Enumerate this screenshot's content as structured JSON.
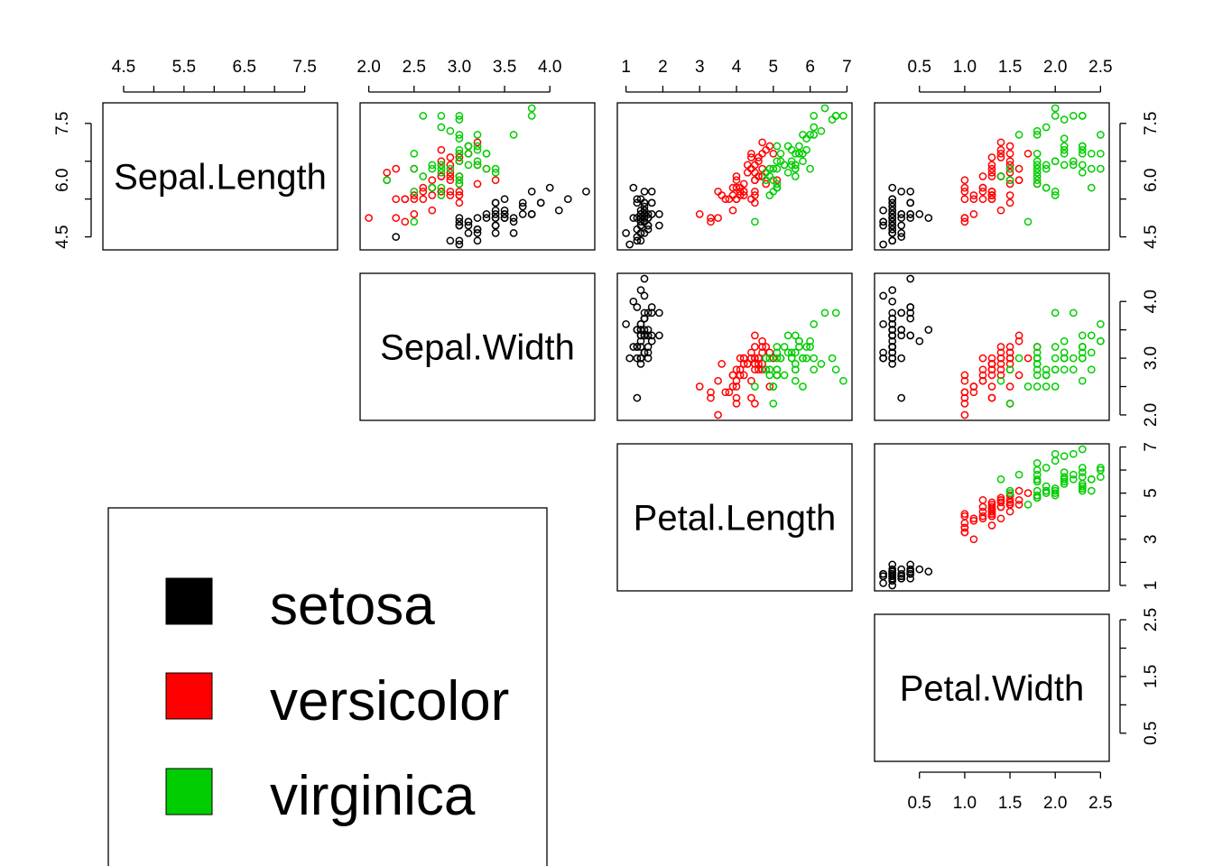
{
  "chart_data": {
    "type": "scatter",
    "variables": [
      "Sepal.Length",
      "Sepal.Width",
      "Petal.Length",
      "Petal.Width"
    ],
    "species": [
      {
        "name": "setosa",
        "color": "#000000"
      },
      {
        "name": "versicolor",
        "color": "#ff0000"
      },
      {
        "name": "virginica",
        "color": "#00cd00"
      }
    ],
    "axes": {
      "Sepal.Length": {
        "lim": [
          4.3,
          7.9
        ],
        "ticks": [
          "4.5",
          "5.5",
          "6.5",
          "7.5"
        ],
        "side_ticks": [
          "4.5",
          "6.0",
          "7.5"
        ]
      },
      "Sepal.Width": {
        "lim": [
          2.0,
          4.4
        ],
        "ticks": [
          "2.0",
          "2.5",
          "3.0",
          "3.5",
          "4.0"
        ],
        "side_ticks": [
          "2.0",
          "3.0",
          "4.0"
        ]
      },
      "Petal.Length": {
        "lim": [
          1.0,
          6.9
        ],
        "ticks": [
          "1",
          "2",
          "3",
          "4",
          "5",
          "6",
          "7"
        ],
        "side_ticks": [
          "1",
          "3",
          "5",
          "7"
        ]
      },
      "Petal.Width": {
        "lim": [
          0.1,
          2.5
        ],
        "ticks": [
          "0.5",
          "1.0",
          "1.5",
          "2.0",
          "2.5"
        ],
        "side_ticks": [
          "0.5",
          "1.5",
          "2.5"
        ]
      }
    },
    "legend": {
      "position": "bottom-left",
      "entries": [
        "setosa",
        "versicolor",
        "virginica"
      ]
    },
    "grid": false,
    "data": [
      [
        5.1,
        3.5,
        1.4,
        0.2,
        0
      ],
      [
        4.9,
        3.0,
        1.4,
        0.2,
        0
      ],
      [
        4.7,
        3.2,
        1.3,
        0.2,
        0
      ],
      [
        4.6,
        3.1,
        1.5,
        0.2,
        0
      ],
      [
        5.0,
        3.6,
        1.4,
        0.2,
        0
      ],
      [
        5.4,
        3.9,
        1.7,
        0.4,
        0
      ],
      [
        4.6,
        3.4,
        1.4,
        0.3,
        0
      ],
      [
        5.0,
        3.4,
        1.5,
        0.2,
        0
      ],
      [
        4.4,
        2.9,
        1.4,
        0.2,
        0
      ],
      [
        4.9,
        3.1,
        1.5,
        0.1,
        0
      ],
      [
        5.4,
        3.7,
        1.5,
        0.2,
        0
      ],
      [
        4.8,
        3.4,
        1.6,
        0.2,
        0
      ],
      [
        4.8,
        3.0,
        1.4,
        0.1,
        0
      ],
      [
        4.3,
        3.0,
        1.1,
        0.1,
        0
      ],
      [
        5.8,
        4.0,
        1.2,
        0.2,
        0
      ],
      [
        5.7,
        4.4,
        1.5,
        0.4,
        0
      ],
      [
        5.4,
        3.9,
        1.3,
        0.4,
        0
      ],
      [
        5.1,
        3.5,
        1.4,
        0.3,
        0
      ],
      [
        5.7,
        3.8,
        1.7,
        0.3,
        0
      ],
      [
        5.1,
        3.8,
        1.5,
        0.3,
        0
      ],
      [
        5.4,
        3.4,
        1.7,
        0.2,
        0
      ],
      [
        5.1,
        3.7,
        1.5,
        0.4,
        0
      ],
      [
        4.6,
        3.6,
        1.0,
        0.2,
        0
      ],
      [
        5.1,
        3.3,
        1.7,
        0.5,
        0
      ],
      [
        4.8,
        3.4,
        1.9,
        0.2,
        0
      ],
      [
        5.0,
        3.0,
        1.6,
        0.2,
        0
      ],
      [
        5.0,
        3.4,
        1.6,
        0.4,
        0
      ],
      [
        5.2,
        3.5,
        1.5,
        0.2,
        0
      ],
      [
        5.2,
        3.4,
        1.4,
        0.2,
        0
      ],
      [
        4.7,
        3.2,
        1.6,
        0.2,
        0
      ],
      [
        4.8,
        3.1,
        1.6,
        0.2,
        0
      ],
      [
        5.4,
        3.4,
        1.5,
        0.4,
        0
      ],
      [
        5.2,
        4.1,
        1.5,
        0.1,
        0
      ],
      [
        5.5,
        4.2,
        1.4,
        0.2,
        0
      ],
      [
        4.9,
        3.1,
        1.5,
        0.2,
        0
      ],
      [
        5.0,
        3.2,
        1.2,
        0.2,
        0
      ],
      [
        5.5,
        3.5,
        1.3,
        0.2,
        0
      ],
      [
        4.9,
        3.6,
        1.4,
        0.1,
        0
      ],
      [
        4.4,
        3.0,
        1.3,
        0.2,
        0
      ],
      [
        5.1,
        3.4,
        1.5,
        0.2,
        0
      ],
      [
        5.0,
        3.5,
        1.3,
        0.3,
        0
      ],
      [
        4.5,
        2.3,
        1.3,
        0.3,
        0
      ],
      [
        4.4,
        3.2,
        1.3,
        0.2,
        0
      ],
      [
        5.0,
        3.5,
        1.6,
        0.6,
        0
      ],
      [
        5.1,
        3.8,
        1.9,
        0.4,
        0
      ],
      [
        4.8,
        3.0,
        1.4,
        0.3,
        0
      ],
      [
        5.1,
        3.8,
        1.6,
        0.2,
        0
      ],
      [
        4.6,
        3.2,
        1.4,
        0.2,
        0
      ],
      [
        5.3,
        3.7,
        1.5,
        0.2,
        0
      ],
      [
        5.0,
        3.3,
        1.4,
        0.2,
        0
      ],
      [
        7.0,
        3.2,
        4.7,
        1.4,
        1
      ],
      [
        6.4,
        3.2,
        4.5,
        1.5,
        1
      ],
      [
        6.9,
        3.1,
        4.9,
        1.5,
        1
      ],
      [
        5.5,
        2.3,
        4.0,
        1.3,
        1
      ],
      [
        6.5,
        2.8,
        4.6,
        1.5,
        1
      ],
      [
        5.7,
        2.8,
        4.5,
        1.3,
        1
      ],
      [
        6.3,
        3.3,
        4.7,
        1.6,
        1
      ],
      [
        4.9,
        2.4,
        3.3,
        1.0,
        1
      ],
      [
        6.6,
        2.9,
        4.6,
        1.3,
        1
      ],
      [
        5.2,
        2.7,
        3.9,
        1.4,
        1
      ],
      [
        5.0,
        2.0,
        3.5,
        1.0,
        1
      ],
      [
        5.9,
        3.0,
        4.2,
        1.5,
        1
      ],
      [
        6.0,
        2.2,
        4.0,
        1.0,
        1
      ],
      [
        6.1,
        2.9,
        4.7,
        1.4,
        1
      ],
      [
        5.6,
        2.9,
        3.6,
        1.3,
        1
      ],
      [
        6.7,
        3.1,
        4.4,
        1.4,
        1
      ],
      [
        5.6,
        3.0,
        4.5,
        1.5,
        1
      ],
      [
        5.8,
        2.7,
        4.1,
        1.0,
        1
      ],
      [
        6.2,
        2.2,
        4.5,
        1.5,
        1
      ],
      [
        5.6,
        2.5,
        3.9,
        1.1,
        1
      ],
      [
        5.9,
        3.2,
        4.8,
        1.8,
        1
      ],
      [
        6.1,
        2.8,
        4.0,
        1.3,
        1
      ],
      [
        6.3,
        2.5,
        4.9,
        1.5,
        1
      ],
      [
        6.1,
        2.8,
        4.7,
        1.2,
        1
      ],
      [
        6.4,
        2.9,
        4.3,
        1.3,
        1
      ],
      [
        6.6,
        3.0,
        4.4,
        1.4,
        1
      ],
      [
        6.8,
        2.8,
        4.8,
        1.4,
        1
      ],
      [
        6.7,
        3.0,
        5.0,
        1.7,
        1
      ],
      [
        6.0,
        2.9,
        4.5,
        1.5,
        1
      ],
      [
        5.7,
        2.6,
        3.5,
        1.0,
        1
      ],
      [
        5.5,
        2.4,
        3.8,
        1.1,
        1
      ],
      [
        5.5,
        2.4,
        3.7,
        1.0,
        1
      ],
      [
        5.8,
        2.7,
        3.9,
        1.2,
        1
      ],
      [
        6.0,
        2.7,
        5.1,
        1.6,
        1
      ],
      [
        5.4,
        3.0,
        4.5,
        1.5,
        1
      ],
      [
        6.0,
        3.4,
        4.5,
        1.6,
        1
      ],
      [
        6.7,
        3.1,
        4.7,
        1.5,
        1
      ],
      [
        6.3,
        2.3,
        4.4,
        1.3,
        1
      ],
      [
        5.6,
        3.0,
        4.1,
        1.3,
        1
      ],
      [
        5.5,
        2.5,
        4.0,
        1.3,
        1
      ],
      [
        5.5,
        2.6,
        4.4,
        1.2,
        1
      ],
      [
        6.1,
        3.0,
        4.6,
        1.4,
        1
      ],
      [
        5.8,
        2.6,
        4.0,
        1.2,
        1
      ],
      [
        5.0,
        2.3,
        3.3,
        1.0,
        1
      ],
      [
        5.6,
        2.7,
        4.2,
        1.3,
        1
      ],
      [
        5.7,
        3.0,
        4.2,
        1.2,
        1
      ],
      [
        5.7,
        2.9,
        4.2,
        1.3,
        1
      ],
      [
        6.2,
        2.9,
        4.3,
        1.3,
        1
      ],
      [
        5.1,
        2.5,
        3.0,
        1.1,
        1
      ],
      [
        5.7,
        2.8,
        4.1,
        1.3,
        1
      ],
      [
        6.3,
        3.3,
        6.0,
        2.5,
        2
      ],
      [
        5.8,
        2.7,
        5.1,
        1.9,
        2
      ],
      [
        7.1,
        3.0,
        5.9,
        2.1,
        2
      ],
      [
        6.3,
        2.9,
        5.6,
        1.8,
        2
      ],
      [
        6.5,
        3.0,
        5.8,
        2.2,
        2
      ],
      [
        7.6,
        3.0,
        6.6,
        2.1,
        2
      ],
      [
        4.9,
        2.5,
        4.5,
        1.7,
        2
      ],
      [
        7.3,
        2.9,
        6.3,
        1.8,
        2
      ],
      [
        6.7,
        2.5,
        5.8,
        1.8,
        2
      ],
      [
        7.2,
        3.6,
        6.1,
        2.5,
        2
      ],
      [
        6.5,
        3.2,
        5.1,
        2.0,
        2
      ],
      [
        6.4,
        2.7,
        5.3,
        1.9,
        2
      ],
      [
        6.8,
        3.0,
        5.5,
        2.1,
        2
      ],
      [
        5.7,
        2.5,
        5.0,
        2.0,
        2
      ],
      [
        5.8,
        2.8,
        5.1,
        2.4,
        2
      ],
      [
        6.4,
        3.2,
        5.3,
        2.3,
        2
      ],
      [
        6.5,
        3.0,
        5.5,
        1.8,
        2
      ],
      [
        7.7,
        3.8,
        6.7,
        2.2,
        2
      ],
      [
        7.7,
        2.6,
        6.9,
        2.3,
        2
      ],
      [
        6.0,
        2.2,
        5.0,
        1.5,
        2
      ],
      [
        6.9,
        3.2,
        5.7,
        2.3,
        2
      ],
      [
        5.6,
        2.8,
        4.9,
        2.0,
        2
      ],
      [
        7.7,
        2.8,
        6.7,
        2.0,
        2
      ],
      [
        6.3,
        2.7,
        4.9,
        1.8,
        2
      ],
      [
        6.7,
        3.3,
        5.7,
        2.1,
        2
      ],
      [
        7.2,
        3.2,
        6.0,
        1.8,
        2
      ],
      [
        6.2,
        2.8,
        4.8,
        1.8,
        2
      ],
      [
        6.1,
        3.0,
        4.9,
        1.8,
        2
      ],
      [
        6.4,
        2.8,
        5.6,
        2.1,
        2
      ],
      [
        7.2,
        3.0,
        5.8,
        1.6,
        2
      ],
      [
        7.4,
        2.8,
        6.1,
        1.9,
        2
      ],
      [
        7.9,
        3.8,
        6.4,
        2.0,
        2
      ],
      [
        6.4,
        2.8,
        5.6,
        2.2,
        2
      ],
      [
        6.3,
        2.8,
        5.1,
        1.5,
        2
      ],
      [
        6.1,
        2.6,
        5.6,
        1.4,
        2
      ],
      [
        7.7,
        3.0,
        6.1,
        2.3,
        2
      ],
      [
        6.3,
        3.4,
        5.6,
        2.4,
        2
      ],
      [
        6.4,
        3.1,
        5.5,
        1.8,
        2
      ],
      [
        6.0,
        3.0,
        4.8,
        1.8,
        2
      ],
      [
        6.9,
        3.1,
        5.4,
        2.1,
        2
      ],
      [
        6.7,
        3.1,
        5.6,
        2.4,
        2
      ],
      [
        6.9,
        3.1,
        5.1,
        2.3,
        2
      ],
      [
        5.8,
        2.7,
        5.1,
        1.9,
        2
      ],
      [
        6.8,
        3.2,
        5.9,
        2.3,
        2
      ],
      [
        6.7,
        3.3,
        5.7,
        2.5,
        2
      ],
      [
        6.7,
        3.0,
        5.2,
        2.3,
        2
      ],
      [
        6.3,
        2.5,
        5.0,
        1.9,
        2
      ],
      [
        6.5,
        3.0,
        5.2,
        2.0,
        2
      ],
      [
        6.2,
        3.4,
        5.4,
        2.3,
        2
      ],
      [
        5.9,
        3.0,
        5.1,
        1.8,
        2
      ]
    ]
  }
}
